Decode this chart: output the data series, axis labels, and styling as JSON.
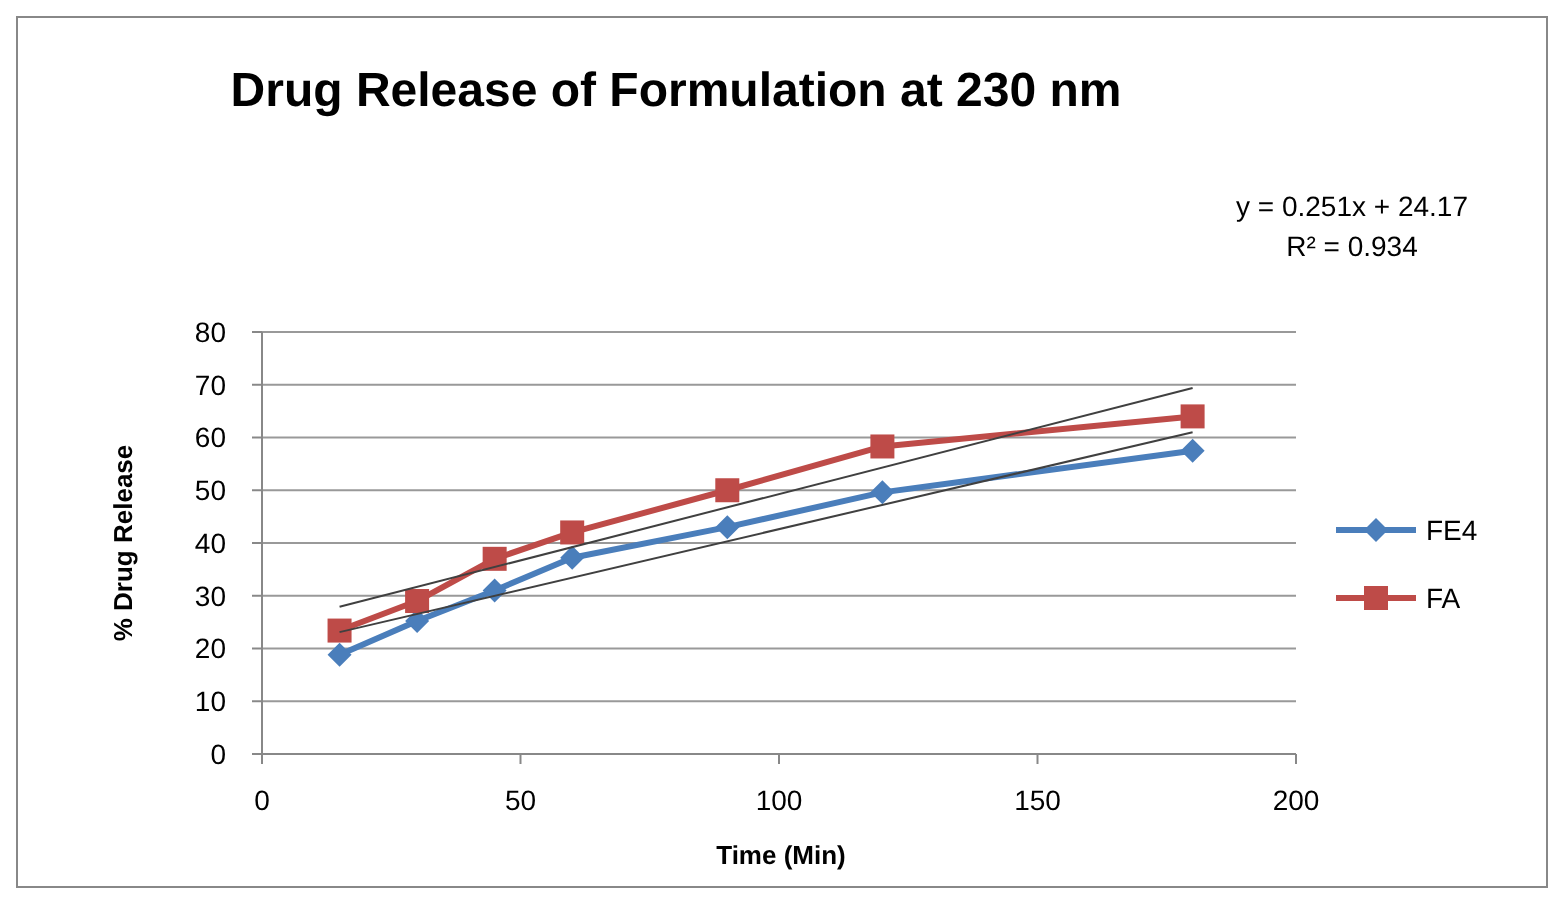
{
  "chart_data": {
    "type": "line",
    "title": "Drug Release of Formulation at 230 nm",
    "xlabel": "Time (Min)",
    "ylabel": "% Drug  Release",
    "x": [
      15,
      30,
      45,
      60,
      90,
      120,
      180
    ],
    "series": [
      {
        "name": "FE4",
        "color": "#4a7ebb",
        "marker": "diamond",
        "values": [
          18.8,
          25.2,
          31,
          37.2,
          43,
          49.6,
          57.5
        ]
      },
      {
        "name": "FA",
        "color": "#be4b48",
        "marker": "square",
        "values": [
          23.4,
          29,
          37,
          42,
          50,
          58.3,
          64
        ]
      },
      {
        "type": "line",
        "color": "#404040",
        "marker": "none",
        "values": [
          27.9,
          null,
          null,
          null,
          null,
          null,
          69.4
        ]
      },
      {
        "type": "line",
        "color": "#404040",
        "marker": "none",
        "values": [
          23.1,
          null,
          null,
          null,
          null,
          null,
          61
        ]
      }
    ],
    "xlim": [
      0,
      200
    ],
    "xticks": [
      0,
      50,
      100,
      150,
      200
    ],
    "ylim": [
      0,
      80
    ],
    "yticks": [
      0,
      10,
      20,
      30,
      40,
      50,
      60,
      70,
      80
    ],
    "grid": "y",
    "legend": "right",
    "annotations": [
      "y = 0.251x + 24.17",
      "R² = 0.934"
    ]
  }
}
